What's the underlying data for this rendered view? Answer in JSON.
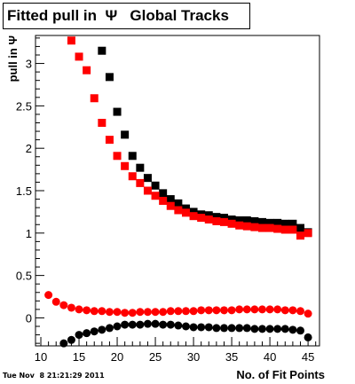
{
  "title": "Fitted pull in  Ψ   Global Tracks",
  "timestamp": "Tue Nov  8 21:21:29 2011",
  "chart_data": {
    "type": "scatter",
    "title": "Fitted pull in  Ψ   Global Tracks",
    "xlabel": "No. of Fit Points",
    "ylabel": "pull in Ψ",
    "xlim": [
      9.3,
      46.5
    ],
    "ylim": [
      -0.33,
      3.33
    ],
    "x_ticks": [
      10,
      15,
      20,
      25,
      30,
      35,
      40,
      45
    ],
    "x_tick_labels": [
      "10",
      "15",
      "20",
      "25",
      "30",
      "35",
      "40",
      "45"
    ],
    "y_ticks": [
      0,
      0.5,
      1,
      1.5,
      2,
      2.5,
      3
    ],
    "y_tick_labels": [
      "0",
      "0.5",
      "1",
      "1.5",
      "2",
      "2.5",
      "3"
    ],
    "grid": false,
    "series": [
      {
        "marker": "square",
        "color": "#000000",
        "x": [
          18,
          19,
          20,
          21,
          22,
          23,
          24,
          25,
          26,
          27,
          28,
          29,
          30,
          31,
          32,
          33,
          34,
          35,
          36,
          37,
          38,
          39,
          40,
          41,
          42,
          43,
          44,
          45
        ],
        "y": [
          3.15,
          2.84,
          2.43,
          2.16,
          1.91,
          1.77,
          1.65,
          1.56,
          1.47,
          1.4,
          1.35,
          1.29,
          1.25,
          1.22,
          1.21,
          1.19,
          1.18,
          1.16,
          1.15,
          1.15,
          1.14,
          1.13,
          1.12,
          1.12,
          1.11,
          1.11,
          1.06,
          1.01
        ]
      },
      {
        "marker": "square",
        "color": "#ff0000",
        "x": [
          14,
          15,
          16,
          17,
          18,
          19,
          20,
          21,
          22,
          23,
          24,
          25,
          26,
          27,
          28,
          29,
          30,
          31,
          32,
          33,
          34,
          35,
          36,
          37,
          38,
          39,
          40,
          41,
          42,
          43,
          44,
          45
        ],
        "y": [
          3.27,
          3.08,
          2.92,
          2.59,
          2.3,
          2.1,
          1.91,
          1.79,
          1.67,
          1.59,
          1.5,
          1.44,
          1.38,
          1.32,
          1.27,
          1.24,
          1.2,
          1.18,
          1.16,
          1.14,
          1.13,
          1.11,
          1.09,
          1.08,
          1.07,
          1.06,
          1.06,
          1.05,
          1.04,
          1.04,
          0.97,
          1.0
        ]
      },
      {
        "marker": "circle",
        "color": "#ff0000",
        "x": [
          11,
          12,
          13,
          14,
          15,
          16,
          17,
          18,
          19,
          20,
          21,
          22,
          23,
          24,
          25,
          26,
          27,
          28,
          29,
          30,
          31,
          32,
          33,
          34,
          35,
          36,
          37,
          38,
          39,
          40,
          41,
          42,
          43,
          44,
          45
        ],
        "y": [
          0.27,
          0.19,
          0.15,
          0.12,
          0.1,
          0.09,
          0.08,
          0.08,
          0.07,
          0.07,
          0.06,
          0.06,
          0.07,
          0.07,
          0.07,
          0.07,
          0.08,
          0.08,
          0.08,
          0.08,
          0.09,
          0.09,
          0.09,
          0.09,
          0.09,
          0.1,
          0.1,
          0.1,
          0.1,
          0.1,
          0.1,
          0.09,
          0.09,
          0.08,
          0.05
        ]
      },
      {
        "marker": "circle",
        "color": "#000000",
        "x": [
          13,
          14,
          15,
          16,
          17,
          18,
          19,
          20,
          21,
          22,
          23,
          24,
          25,
          26,
          27,
          28,
          29,
          30,
          31,
          32,
          33,
          34,
          35,
          36,
          37,
          38,
          39,
          40,
          41,
          42,
          43,
          44,
          45
        ],
        "y": [
          -0.3,
          -0.26,
          -0.2,
          -0.18,
          -0.16,
          -0.14,
          -0.12,
          -0.1,
          -0.08,
          -0.08,
          -0.08,
          -0.07,
          -0.07,
          -0.08,
          -0.08,
          -0.09,
          -0.1,
          -0.11,
          -0.11,
          -0.11,
          -0.12,
          -0.12,
          -0.12,
          -0.12,
          -0.12,
          -0.13,
          -0.13,
          -0.13,
          -0.13,
          -0.13,
          -0.14,
          -0.15,
          -0.23
        ]
      }
    ]
  }
}
